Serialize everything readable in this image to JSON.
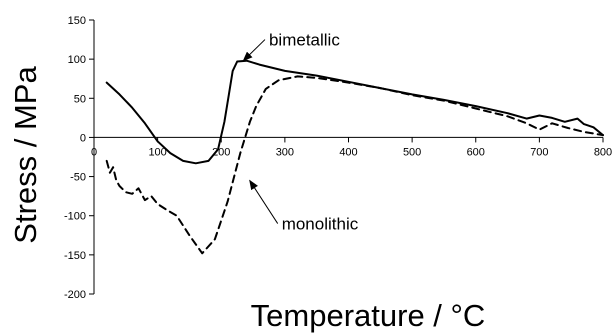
{
  "chart_data": {
    "type": "line",
    "title": "",
    "xlabel": "Temperature / °C",
    "ylabel": "Stress / MPa",
    "xlim": [
      0,
      800
    ],
    "ylim": [
      -200,
      150
    ],
    "x_ticks": [
      "0",
      "100",
      "200",
      "300",
      "400",
      "500",
      "600",
      "700",
      "800"
    ],
    "y_ticks": [
      "150",
      "100",
      "50",
      "0",
      "-50",
      "-100",
      "-150",
      "-200"
    ],
    "grid": false,
    "legend": "none",
    "series": [
      {
        "name": "bimetallic",
        "style": "solid",
        "color": "#000000",
        "points": [
          [
            20,
            70
          ],
          [
            40,
            55
          ],
          [
            60,
            38
          ],
          [
            80,
            18
          ],
          [
            100,
            -5
          ],
          [
            120,
            -20
          ],
          [
            140,
            -30
          ],
          [
            160,
            -33
          ],
          [
            180,
            -30
          ],
          [
            195,
            -15
          ],
          [
            205,
            20
          ],
          [
            212,
            55
          ],
          [
            218,
            85
          ],
          [
            225,
            97
          ],
          [
            240,
            98
          ],
          [
            260,
            93
          ],
          [
            300,
            85
          ],
          [
            350,
            79
          ],
          [
            400,
            71
          ],
          [
            450,
            63
          ],
          [
            500,
            55
          ],
          [
            550,
            48
          ],
          [
            600,
            40
          ],
          [
            650,
            31
          ],
          [
            680,
            24
          ],
          [
            700,
            28
          ],
          [
            720,
            25
          ],
          [
            740,
            20
          ],
          [
            760,
            24
          ],
          [
            770,
            17
          ],
          [
            785,
            13
          ],
          [
            800,
            3
          ]
        ]
      },
      {
        "name": "monolithic",
        "style": "dashed",
        "color": "#000000",
        "points": [
          [
            20,
            -30
          ],
          [
            25,
            -45
          ],
          [
            30,
            -38
          ],
          [
            35,
            -55
          ],
          [
            40,
            -62
          ],
          [
            50,
            -70
          ],
          [
            60,
            -72
          ],
          [
            70,
            -65
          ],
          [
            80,
            -80
          ],
          [
            90,
            -75
          ],
          [
            100,
            -85
          ],
          [
            115,
            -93
          ],
          [
            130,
            -100
          ],
          [
            150,
            -125
          ],
          [
            170,
            -148
          ],
          [
            190,
            -130
          ],
          [
            210,
            -82
          ],
          [
            230,
            -20
          ],
          [
            245,
            20
          ],
          [
            255,
            40
          ],
          [
            270,
            62
          ],
          [
            290,
            73
          ],
          [
            320,
            78
          ],
          [
            350,
            76
          ],
          [
            400,
            70
          ],
          [
            450,
            63
          ],
          [
            500,
            54
          ],
          [
            550,
            47
          ],
          [
            600,
            37
          ],
          [
            650,
            27
          ],
          [
            680,
            18
          ],
          [
            700,
            10
          ],
          [
            720,
            18
          ],
          [
            745,
            12
          ],
          [
            770,
            7
          ],
          [
            800,
            3
          ]
        ]
      }
    ],
    "annotations": [
      {
        "text": "bimetallic",
        "target": [
          230,
          98
        ],
        "text_at": [
          275,
          125
        ]
      },
      {
        "text": "monolithic",
        "target": [
          240,
          -55
        ],
        "text_at": [
          295,
          -110
        ]
      }
    ]
  }
}
